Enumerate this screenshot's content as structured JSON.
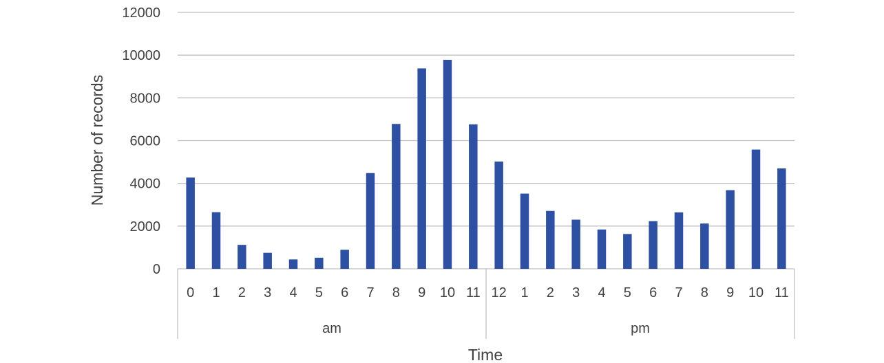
{
  "chart_data": {
    "type": "bar",
    "title": "",
    "xlabel": "Time",
    "ylabel": "Number of records",
    "ylim": [
      0,
      12000
    ],
    "yticks": [
      0,
      2000,
      4000,
      6000,
      8000,
      10000,
      12000
    ],
    "grid": true,
    "legend": "none",
    "bar_color": "#2e50a3",
    "categories": [
      "0",
      "1",
      "2",
      "3",
      "4",
      "5",
      "6",
      "7",
      "8",
      "9",
      "10",
      "11",
      "12",
      "1",
      "2",
      "3",
      "4",
      "5",
      "6",
      "7",
      "8",
      "9",
      "10",
      "11"
    ],
    "groups": [
      {
        "label": "am",
        "count": 12
      },
      {
        "label": "pm",
        "count": 12
      }
    ],
    "values": [
      4270,
      2650,
      1120,
      750,
      440,
      520,
      890,
      4480,
      6780,
      9380,
      9780,
      6760,
      5020,
      3520,
      2710,
      2300,
      1840,
      1630,
      2230,
      2640,
      2120,
      3680,
      5580,
      4700
    ]
  }
}
